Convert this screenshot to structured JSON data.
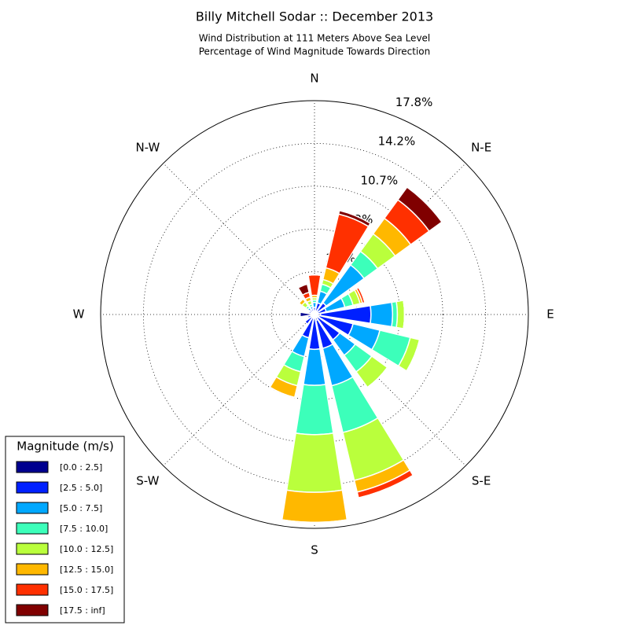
{
  "chart_data": {
    "type": "windrose",
    "title": "Billy Mitchell Sodar :: December 2013",
    "subtitle": [
      "Wind Distribution at 111 Meters Above Sea Level",
      "Percentage of Wind Magnitude Towards Direction"
    ],
    "categories": [
      "N",
      null,
      "N-E",
      null,
      "E",
      null,
      "S-E",
      null,
      "S",
      null,
      "S-W",
      null,
      "W",
      null,
      "N-W",
      null
    ],
    "ylim": [
      0,
      17.8
    ],
    "yticks": [
      {
        "value": 3.56,
        "label": "3.6%"
      },
      {
        "value": 7.12,
        "label": "7.2%"
      },
      {
        "value": 10.68,
        "label": "10.7%"
      },
      {
        "value": 14.24,
        "label": "14.2%"
      },
      {
        "value": 17.8,
        "label": "17.8%"
      }
    ],
    "grid": true,
    "legend_title": "Magnitude (m/s)",
    "legend_position": "lower-left",
    "series": [
      {
        "name": "[0.0 : 2.5]",
        "color": "#00008f",
        "values": [
          0.2,
          0.3,
          0.3,
          0.3,
          0.5,
          0.4,
          0.3,
          0.5,
          0.3,
          0.3,
          0.3,
          0.2,
          1.2,
          0.3,
          0.2,
          0.2
        ]
      },
      {
        "name": "[2.5 : 5.0]",
        "color": "#0020ff",
        "values": [
          0.4,
          0.7,
          0.9,
          0.7,
          4.2,
          2.9,
          2.3,
          2.4,
          2.6,
          1.7,
          0.7,
          0.4,
          0,
          0.2,
          0.3,
          0.3
        ]
      },
      {
        "name": "[5.0 : 7.5]",
        "color": "#00a8ff",
        "values": [
          0.4,
          1.0,
          3.9,
          1.6,
          1.8,
          2.3,
          1.6,
          3.2,
          3.0,
          1.6,
          0,
          0,
          0,
          0,
          0.2,
          0.2
        ]
      },
      {
        "name": "[7.5 : 10.0]",
        "color": "#3cffba",
        "values": [
          0.2,
          0.6,
          1.4,
          0.7,
          0.4,
          2.6,
          1.7,
          4.0,
          4.1,
          1.3,
          0,
          0,
          0,
          0,
          0.2,
          0.2
        ]
      },
      {
        "name": "[10.0 : 12.5]",
        "color": "#baff3c",
        "values": [
          0.2,
          0.4,
          1.8,
          0.6,
          0.6,
          0.8,
          1.6,
          4.1,
          4.8,
          1.2,
          0,
          0,
          0,
          0,
          0.4,
          0.3
        ]
      },
      {
        "name": "[12.5 : 15.0]",
        "color": "#ffb800",
        "values": [
          0.2,
          1.0,
          1.6,
          0.2,
          0,
          0,
          0,
          1.0,
          2.5,
          1.0,
          0,
          0,
          0,
          0,
          0.3,
          0.3
        ]
      },
      {
        "name": "[15.0 : 17.5]",
        "color": "#ff3000",
        "values": [
          1.7,
          4.6,
          1.9,
          0.2,
          0,
          0,
          0,
          0.5,
          0.1,
          0,
          0,
          0,
          0,
          0,
          0,
          0.4
        ]
      },
      {
        "name": "[17.5 : inf]",
        "color": "#800000",
        "values": [
          0,
          0.3,
          1.3,
          0,
          0,
          0,
          0,
          0,
          0,
          0,
          0,
          0,
          0,
          0,
          0,
          0.7
        ]
      }
    ]
  }
}
